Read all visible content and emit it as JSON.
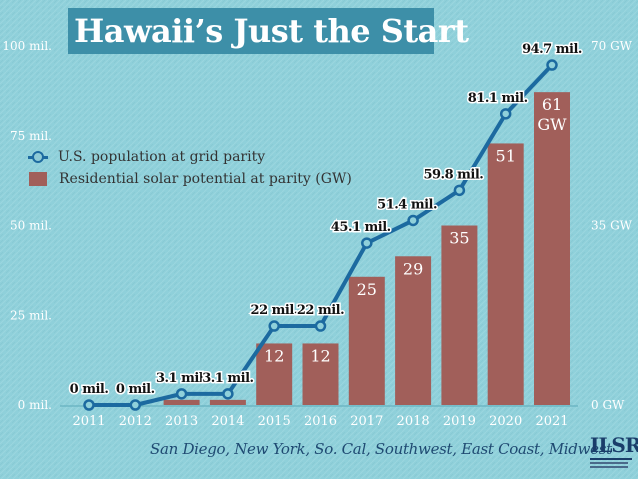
{
  "title": "Hawaii’s Just the Start",
  "subtitle": "San Diego, New York, So. Cal, Southwest, East Coast, Midwest",
  "logo": {
    "text": "ILSR"
  },
  "colors": {
    "background": "#8fd0da",
    "bar": "#a15f5a",
    "line": "#1c6aa0",
    "title_bg": "#3d8fa8"
  },
  "chart_data": {
    "type": "bar",
    "categories": [
      "2011",
      "2012",
      "2013",
      "2014",
      "2015",
      "2016",
      "2017",
      "2018",
      "2019",
      "2020",
      "2021"
    ],
    "series": [
      {
        "name": "U.S. population at grid parity",
        "type": "line",
        "axis": "left",
        "values": [
          0,
          0,
          3.1,
          3.1,
          22,
          22,
          45.1,
          51.4,
          59.8,
          81.1,
          94.7
        ],
        "labels": [
          "0 mil.",
          "0 mil.",
          "3.1 mil.",
          "3.1 mil.",
          "22 mil.",
          "22 mil.",
          "45.1 mil.",
          "51.4 mil.",
          "59.8 mil.",
          "81.1 mil.",
          "94.7 mil."
        ]
      },
      {
        "name": "Residential solar potential at parity (GW)",
        "type": "bar",
        "axis": "right",
        "values": [
          0,
          0,
          1,
          1,
          12,
          12,
          25,
          29,
          35,
          51,
          61
        ],
        "labels": [
          "",
          "",
          "",
          "",
          "12",
          "12",
          "25",
          "29",
          "35",
          "51",
          "61 GW"
        ]
      }
    ],
    "y_left": {
      "ylim": [
        0,
        100
      ],
      "ticks": [
        "0 mil.",
        "25 mil.",
        "50 mil.",
        "75 mil.",
        "100 mil."
      ],
      "tick_values": [
        0,
        25,
        50,
        75,
        100
      ]
    },
    "y_right": {
      "ylim": [
        0,
        70
      ],
      "ticks": [
        "0 GW",
        "35 GW",
        "70 GW"
      ],
      "tick_values": [
        0,
        35,
        70
      ]
    },
    "grid": false,
    "legend": "upper-left"
  }
}
